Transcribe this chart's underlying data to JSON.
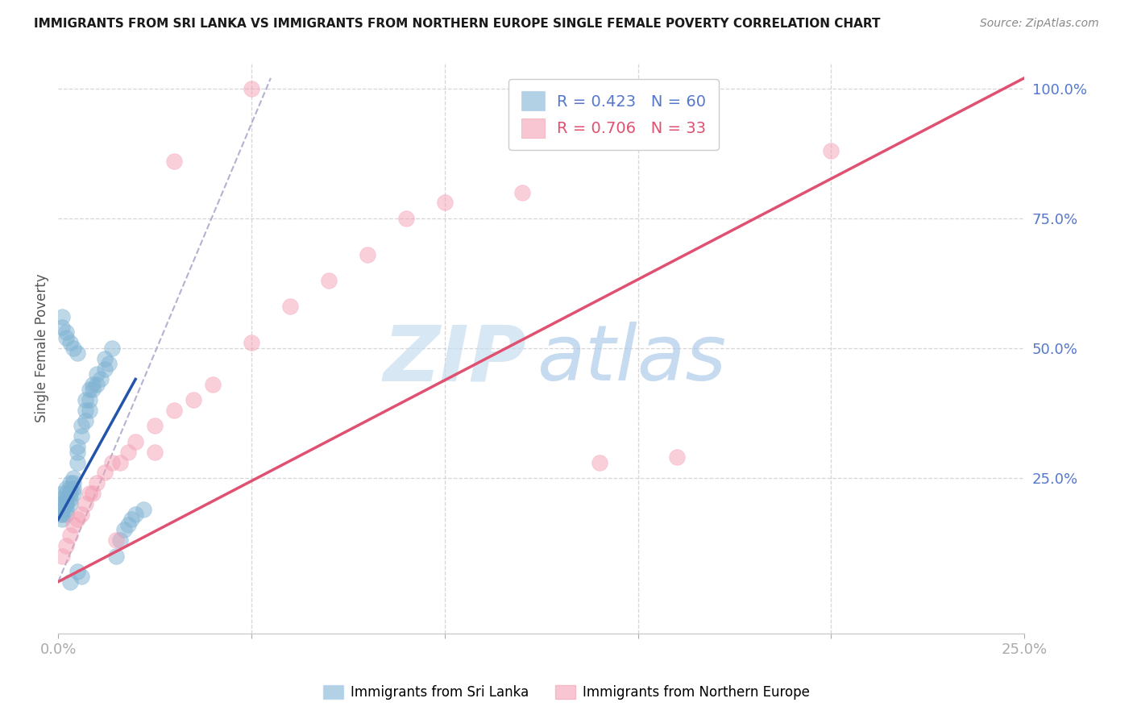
{
  "title": "IMMIGRANTS FROM SRI LANKA VS IMMIGRANTS FROM NORTHERN EUROPE SINGLE FEMALE POVERTY CORRELATION CHART",
  "source": "Source: ZipAtlas.com",
  "ylabel": "Single Female Poverty",
  "blue_color": "#7fb3d3",
  "pink_color": "#f4a0b5",
  "blue_trend_color": "#2255aa",
  "pink_trend_color": "#e05070",
  "gray_dash_color": "#aaaacc",
  "legend1_label": "R = 0.423   N = 60",
  "legend2_label": "R = 0.706   N = 33",
  "tick_color": "#5577cc",
  "grid_color": "#cccccc",
  "background": "#ffffff",
  "xlim": [
    0.0,
    0.25
  ],
  "ylim": [
    -0.05,
    1.05
  ],
  "sri_lanka_x": [
    0.0005,
    0.001,
    0.001,
    0.001,
    0.001,
    0.001,
    0.001,
    0.002,
    0.002,
    0.002,
    0.002,
    0.002,
    0.002,
    0.002,
    0.003,
    0.003,
    0.003,
    0.003,
    0.003,
    0.004,
    0.004,
    0.004,
    0.004,
    0.005,
    0.005,
    0.005,
    0.006,
    0.006,
    0.007,
    0.007,
    0.007,
    0.008,
    0.008,
    0.008,
    0.009,
    0.009,
    0.01,
    0.01,
    0.011,
    0.012,
    0.012,
    0.013,
    0.014,
    0.015,
    0.016,
    0.017,
    0.018,
    0.019,
    0.02,
    0.022,
    0.001,
    0.001,
    0.002,
    0.002,
    0.003,
    0.004,
    0.005,
    0.006,
    0.005,
    0.003
  ],
  "sri_lanka_y": [
    0.18,
    0.2,
    0.19,
    0.22,
    0.21,
    0.18,
    0.17,
    0.2,
    0.22,
    0.21,
    0.19,
    0.18,
    0.23,
    0.2,
    0.22,
    0.21,
    0.23,
    0.2,
    0.24,
    0.25,
    0.23,
    0.24,
    0.22,
    0.3,
    0.28,
    0.31,
    0.35,
    0.33,
    0.38,
    0.36,
    0.4,
    0.4,
    0.38,
    0.42,
    0.42,
    0.43,
    0.45,
    0.43,
    0.44,
    0.46,
    0.48,
    0.47,
    0.5,
    0.1,
    0.13,
    0.15,
    0.16,
    0.17,
    0.18,
    0.19,
    0.56,
    0.54,
    0.53,
    0.52,
    0.51,
    0.5,
    0.49,
    0.06,
    0.07,
    0.05
  ],
  "northern_europe_x": [
    0.001,
    0.002,
    0.003,
    0.004,
    0.005,
    0.006,
    0.007,
    0.008,
    0.009,
    0.01,
    0.012,
    0.014,
    0.016,
    0.018,
    0.02,
    0.025,
    0.03,
    0.035,
    0.04,
    0.05,
    0.06,
    0.07,
    0.08,
    0.09,
    0.1,
    0.12,
    0.14,
    0.16,
    0.2,
    0.05,
    0.03,
    0.025,
    0.015
  ],
  "northern_europe_y": [
    0.1,
    0.12,
    0.14,
    0.16,
    0.17,
    0.18,
    0.2,
    0.22,
    0.22,
    0.24,
    0.26,
    0.28,
    0.28,
    0.3,
    0.32,
    0.35,
    0.38,
    0.4,
    0.43,
    0.51,
    0.58,
    0.63,
    0.68,
    0.75,
    0.78,
    0.8,
    0.28,
    0.29,
    0.88,
    1.0,
    0.86,
    0.3,
    0.13
  ]
}
